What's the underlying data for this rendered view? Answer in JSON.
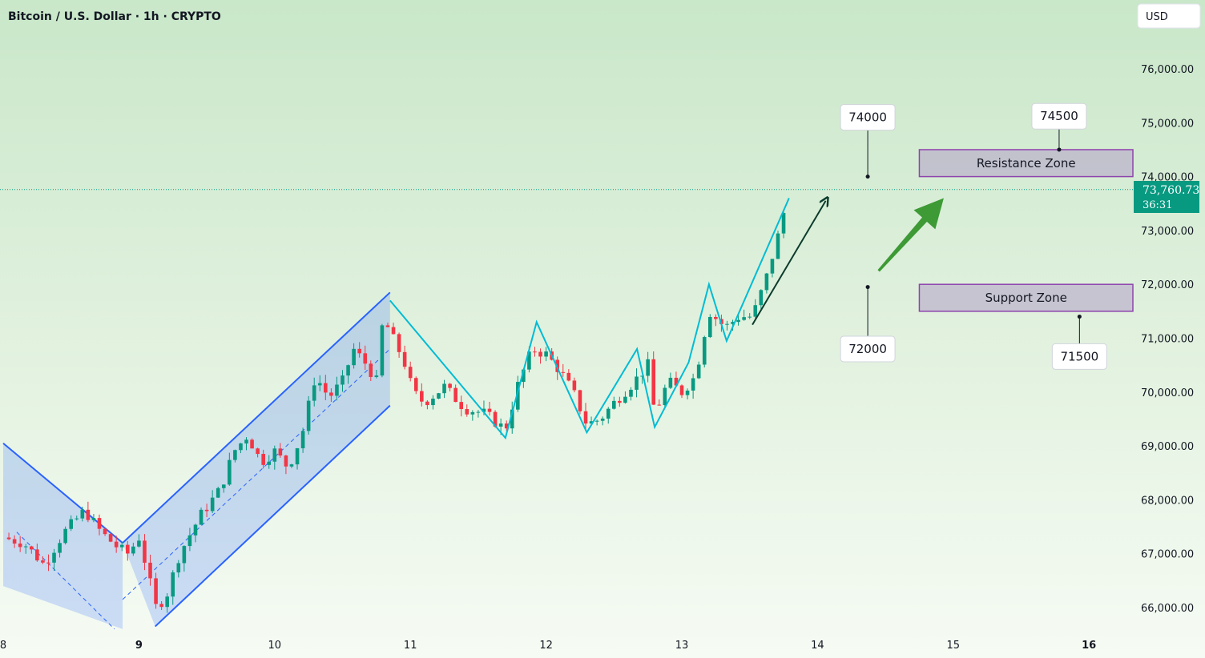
{
  "header": {
    "title": "Bitcoin / U.S. Dollar · 1h · CRYPTO"
  },
  "currency": "USD",
  "price": {
    "value": "73,760.73",
    "countdown": "36:31",
    "color": "#089981"
  },
  "chart_data": {
    "type": "candlestick",
    "ylim": [
      65500,
      77000
    ],
    "x_domain": [
      8,
      16.35
    ],
    "y_ticks": [
      {
        "value": 66000,
        "label": "66,000.00"
      },
      {
        "value": 67000,
        "label": "67,000.00"
      },
      {
        "value": 68000,
        "label": "68,000.00"
      },
      {
        "value": 69000,
        "label": "69,000.00"
      },
      {
        "value": 70000,
        "label": "70,000.00"
      },
      {
        "value": 71000,
        "label": "71,000.00"
      },
      {
        "value": 72000,
        "label": "72,000.00"
      },
      {
        "value": 73000,
        "label": "73,000.00"
      },
      {
        "value": 74000,
        "label": "74,000.00"
      },
      {
        "value": 75000,
        "label": "75,000.00"
      },
      {
        "value": 76000,
        "label": "76,000.00"
      }
    ],
    "x_ticks": [
      {
        "value": 8,
        "label": "8",
        "bold": false
      },
      {
        "value": 9,
        "label": "9",
        "bold": true
      },
      {
        "value": 10,
        "label": "10",
        "bold": false
      },
      {
        "value": 11,
        "label": "11",
        "bold": false
      },
      {
        "value": 12,
        "label": "12",
        "bold": false
      },
      {
        "value": 13,
        "label": "13",
        "bold": false
      },
      {
        "value": 14,
        "label": "14",
        "bold": false
      },
      {
        "value": 15,
        "label": "15",
        "bold": false
      },
      {
        "value": 16,
        "label": "16",
        "bold": true
      }
    ],
    "candle_anchors": [
      [
        8.0,
        67300
      ],
      [
        8.15,
        67200
      ],
      [
        8.3,
        66800
      ],
      [
        8.45,
        67400
      ],
      [
        8.6,
        67800
      ],
      [
        8.72,
        67400
      ],
      [
        8.85,
        67100
      ],
      [
        8.92,
        67000
      ],
      [
        9.0,
        67300
      ],
      [
        9.07,
        66600
      ],
      [
        9.12,
        66000
      ],
      [
        9.2,
        66200
      ],
      [
        9.3,
        67000
      ],
      [
        9.45,
        67700
      ],
      [
        9.6,
        68200
      ],
      [
        9.7,
        68900
      ],
      [
        9.8,
        69200
      ],
      [
        9.9,
        68700
      ],
      [
        10.0,
        68900
      ],
      [
        10.1,
        68600
      ],
      [
        10.2,
        69200
      ],
      [
        10.3,
        70300
      ],
      [
        10.4,
        69900
      ],
      [
        10.5,
        70200
      ],
      [
        10.58,
        70800
      ],
      [
        10.68,
        70500
      ],
      [
        10.75,
        70200
      ],
      [
        10.8,
        71400
      ],
      [
        10.85,
        71100
      ],
      [
        10.95,
        70600
      ],
      [
        11.02,
        70000
      ],
      [
        11.1,
        69800
      ],
      [
        11.25,
        70100
      ],
      [
        11.4,
        69700
      ],
      [
        11.55,
        69600
      ],
      [
        11.7,
        69300
      ],
      [
        11.8,
        70200
      ],
      [
        11.9,
        70800
      ],
      [
        12.0,
        70700
      ],
      [
        12.1,
        70400
      ],
      [
        12.2,
        70000
      ],
      [
        12.3,
        69400
      ],
      [
        12.4,
        69500
      ],
      [
        12.5,
        69800
      ],
      [
        12.65,
        70200
      ],
      [
        12.75,
        70500
      ],
      [
        12.8,
        69600
      ],
      [
        12.9,
        70200
      ],
      [
        13.0,
        70000
      ],
      [
        13.1,
        70300
      ],
      [
        13.2,
        71500
      ],
      [
        13.32,
        71200
      ],
      [
        13.42,
        71400
      ],
      [
        13.52,
        71400
      ],
      [
        13.62,
        72100
      ],
      [
        13.72,
        73000
      ],
      [
        13.79,
        73760
      ]
    ],
    "channel_color": "#2962ff",
    "wave_color": "#00bcd4",
    "up_color": "#089981",
    "down_color": "#f23645",
    "zones": [
      {
        "name": "resistance",
        "label": "Resistance Zone",
        "top": 74500,
        "bottom": 74000
      },
      {
        "name": "support",
        "label": "Support Zone",
        "top": 72000,
        "bottom": 71500
      }
    ],
    "callouts": [
      {
        "name": "callout-74000",
        "label": "74000",
        "x": 14.37,
        "y": 74000,
        "box_y": 75100
      },
      {
        "name": "callout-74500",
        "label": "74500",
        "x": 15.78,
        "y": 74500,
        "box_y": 75120
      },
      {
        "name": "callout-72000",
        "label": "72000",
        "x": 14.37,
        "y": 71950,
        "box_y": 70800
      },
      {
        "name": "callout-71500",
        "label": "71500",
        "x": 15.93,
        "y": 71400,
        "box_y": 70660
      }
    ]
  }
}
